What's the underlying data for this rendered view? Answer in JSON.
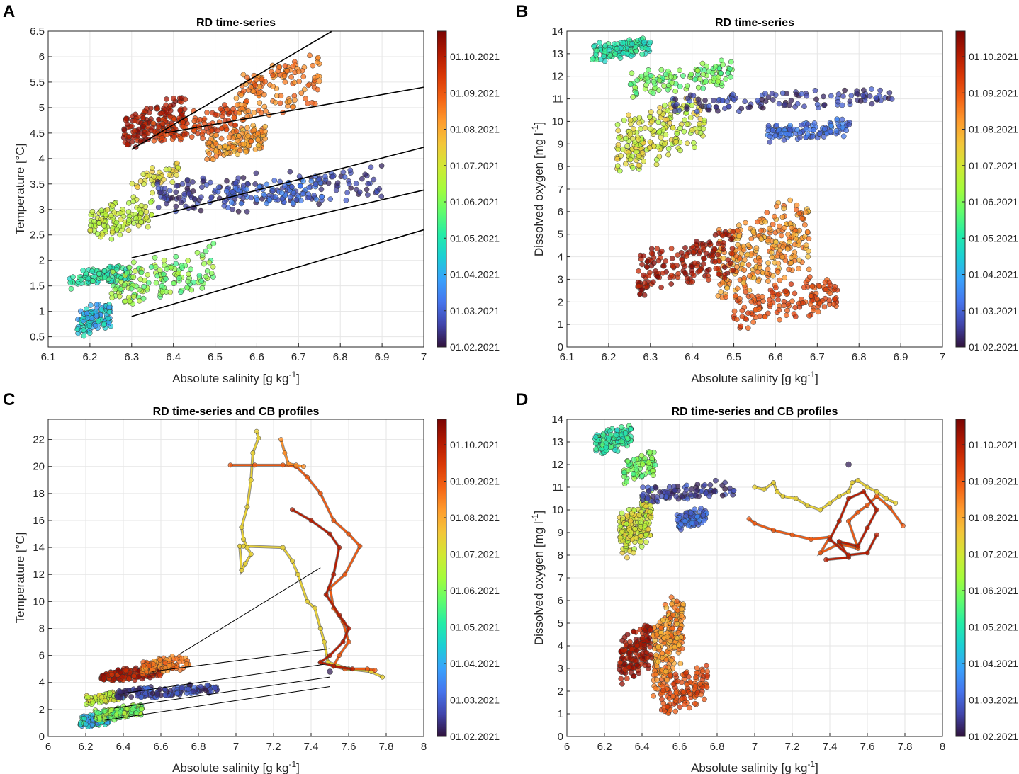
{
  "colormap": [
    "#30123b",
    "#4145ab",
    "#4675ed",
    "#39a2fc",
    "#1bcfd4",
    "#24eca6",
    "#61fc6c",
    "#a4fc3b",
    "#d1e834",
    "#f3c63a",
    "#fe9b2d",
    "#f36315",
    "#d93806",
    "#b11901",
    "#7a0403"
  ],
  "chart_data": [
    {
      "id": "A",
      "letter": "A",
      "type": "scatter",
      "title": "RD time-series",
      "xlabel": "Absolute salinity [g kg",
      "xlabel_sup": "-1",
      "xlabel_end": "]",
      "ylabel": "Temperature [°C]",
      "xlim": [
        6.1,
        7
      ],
      "ylim": [
        0.3,
        6.5
      ],
      "xticks": [
        "6.1",
        "6.2",
        "6.3",
        "6.4",
        "6.5",
        "6.6",
        "6.7",
        "6.8",
        "6.9",
        "7"
      ],
      "xtick_values": [
        6.1,
        6.2,
        6.3,
        6.4,
        6.5,
        6.6,
        6.7,
        6.8,
        6.9,
        7
      ],
      "yticks": [
        "0.5",
        "1",
        "1.5",
        "2",
        "2.5",
        "3",
        "3.5",
        "4",
        "4.5",
        "5",
        "5.5",
        "6",
        "6.5"
      ],
      "ytick_values": [
        0.5,
        1,
        1.5,
        2,
        2.5,
        3,
        3.5,
        4,
        4.5,
        5,
        5.5,
        6,
        6.5
      ],
      "colorbar_labels": [
        "01.10.2021",
        "01.09.2021",
        "01.08.2021",
        "01.07.2021",
        "01.06.2021",
        "01.05.2021",
        "01.04.2021",
        "01.03.2021",
        "01.02.2021"
      ],
      "clusters": [
        {
          "x": [
            6.17,
            6.25
          ],
          "y": [
            0.45,
            1.3
          ],
          "t": [
            0.15,
            0.35
          ],
          "n": 110
        },
        {
          "x": [
            6.15,
            6.3
          ],
          "y": [
            1.4,
            1.95
          ],
          "t": [
            0.3,
            0.4
          ],
          "n": 90
        },
        {
          "x": [
            6.25,
            6.5
          ],
          "y": [
            1.0,
            2.4
          ],
          "t": [
            0.38,
            0.55
          ],
          "n": 140
        },
        {
          "x": [
            6.2,
            6.35
          ],
          "y": [
            2.3,
            3.35
          ],
          "t": [
            0.5,
            0.6
          ],
          "n": 120
        },
        {
          "x": [
            6.3,
            6.42
          ],
          "y": [
            3.3,
            4.0
          ],
          "t": [
            0.55,
            0.65
          ],
          "n": 40
        },
        {
          "x": [
            6.36,
            6.9
          ],
          "y": [
            2.8,
            3.95
          ],
          "t": [
            0.0,
            0.12
          ],
          "n": 170
        },
        {
          "x": [
            6.52,
            6.77
          ],
          "y": [
            2.95,
            3.75
          ],
          "t": [
            0.08,
            0.18
          ],
          "n": 90
        },
        {
          "x": [
            6.48,
            6.62
          ],
          "y": [
            3.9,
            4.75
          ],
          "t": [
            0.65,
            0.78
          ],
          "n": 130
        },
        {
          "x": [
            6.28,
            6.43
          ],
          "y": [
            4.05,
            5.3
          ],
          "t": [
            0.88,
            1.0
          ],
          "n": 140
        },
        {
          "x": [
            6.35,
            6.55
          ],
          "y": [
            4.2,
            5.1
          ],
          "t": [
            0.8,
            0.9
          ],
          "n": 110
        },
        {
          "x": [
            6.55,
            6.75
          ],
          "y": [
            4.5,
            6.25
          ],
          "t": [
            0.7,
            0.82
          ],
          "n": 140
        }
      ],
      "fit_lines": [
        {
          "x": [
            6.3,
            6.78
          ],
          "y": [
            4.18,
            6.5
          ]
        },
        {
          "x": [
            6.38,
            7.0
          ],
          "y": [
            4.5,
            5.4
          ]
        },
        {
          "x": [
            6.35,
            7.0
          ],
          "y": [
            2.85,
            4.22
          ]
        },
        {
          "x": [
            6.3,
            7.0
          ],
          "y": [
            2.05,
            3.38
          ]
        },
        {
          "x": [
            6.3,
            7.0
          ],
          "y": [
            0.9,
            2.6
          ]
        }
      ],
      "profiles": []
    },
    {
      "id": "B",
      "letter": "B",
      "type": "scatter",
      "title": "RD time-series",
      "xlabel": "Absolute salinity [g kg",
      "xlabel_sup": "-1",
      "xlabel_end": "]",
      "ylabel": "Dissolved oxygen [mg l",
      "ylabel_sup": "-1",
      "ylabel_end": "]",
      "xlim": [
        6.1,
        7
      ],
      "ylim": [
        0,
        14
      ],
      "xticks": [
        "6.1",
        "6.2",
        "6.3",
        "6.4",
        "6.5",
        "6.6",
        "6.7",
        "6.8",
        "6.9",
        "7"
      ],
      "xtick_values": [
        6.1,
        6.2,
        6.3,
        6.4,
        6.5,
        6.6,
        6.7,
        6.8,
        6.9,
        7
      ],
      "yticks": [
        "0",
        "1",
        "2",
        "3",
        "4",
        "5",
        "6",
        "7",
        "8",
        "9",
        "10",
        "11",
        "12",
        "13",
        "14"
      ],
      "ytick_values": [
        0,
        1,
        2,
        3,
        4,
        5,
        6,
        7,
        8,
        9,
        10,
        11,
        12,
        13,
        14
      ],
      "colorbar_labels": [
        "01.10.2021",
        "01.09.2021",
        "01.08.2021",
        "01.07.2021",
        "01.06.2021",
        "01.05.2021",
        "01.04.2021",
        "01.03.2021",
        "01.02.2021"
      ],
      "clusters": [
        {
          "x": [
            6.16,
            6.3
          ],
          "y": [
            12.5,
            13.9
          ],
          "t": [
            0.3,
            0.4
          ],
          "n": 120
        },
        {
          "x": [
            6.25,
            6.5
          ],
          "y": [
            11.0,
            12.8
          ],
          "t": [
            0.38,
            0.5
          ],
          "n": 110
        },
        {
          "x": [
            6.22,
            6.43
          ],
          "y": [
            7.5,
            11.5
          ],
          "t": [
            0.5,
            0.65
          ],
          "n": 200
        },
        {
          "x": [
            6.35,
            6.88
          ],
          "y": [
            10.3,
            11.6
          ],
          "t": [
            0.0,
            0.12
          ],
          "n": 120
        },
        {
          "x": [
            6.58,
            6.78
          ],
          "y": [
            9.0,
            10.2
          ],
          "t": [
            0.08,
            0.18
          ],
          "n": 110
        },
        {
          "x": [
            6.46,
            6.68
          ],
          "y": [
            1.5,
            7.0
          ],
          "t": [
            0.65,
            0.8
          ],
          "n": 260
        },
        {
          "x": [
            6.27,
            6.5
          ],
          "y": [
            2.0,
            5.4
          ],
          "t": [
            0.88,
            1.0
          ],
          "n": 170
        },
        {
          "x": [
            6.5,
            6.75
          ],
          "y": [
            0.7,
            3.4
          ],
          "t": [
            0.78,
            0.88
          ],
          "n": 140
        }
      ],
      "fit_lines": [],
      "profiles": []
    },
    {
      "id": "C",
      "letter": "C",
      "type": "scatter",
      "title": "RD time-series and CB profiles",
      "xlabel": "Absolute salinity [g kg",
      "xlabel_sup": "-1",
      "xlabel_end": "]",
      "ylabel": "Temperature [°C]",
      "xlim": [
        6,
        8
      ],
      "ylim": [
        0,
        23.5
      ],
      "xticks": [
        "6",
        "6.2",
        "6.4",
        "6.6",
        "6.8",
        "7",
        "7.2",
        "7.4",
        "7.6",
        "7.8",
        "8"
      ],
      "xtick_values": [
        6,
        6.2,
        6.4,
        6.6,
        6.8,
        7,
        7.2,
        7.4,
        7.6,
        7.8,
        8
      ],
      "yticks": [
        "0",
        "2",
        "4",
        "6",
        "8",
        "10",
        "12",
        "14",
        "16",
        "18",
        "20",
        "22"
      ],
      "ytick_values": [
        0,
        2,
        4,
        6,
        8,
        10,
        12,
        14,
        16,
        18,
        20,
        22
      ],
      "colorbar_labels": [
        "01.10.2021",
        "01.09.2021",
        "01.08.2021",
        "01.07.2021",
        "01.06.2021",
        "01.05.2021",
        "01.04.2021",
        "01.03.2021",
        "01.02.2021"
      ],
      "clusters": [
        {
          "x": [
            6.17,
            6.32
          ],
          "y": [
            0.5,
            1.9
          ],
          "t": [
            0.15,
            0.4
          ],
          "n": 140
        },
        {
          "x": [
            6.25,
            6.5
          ],
          "y": [
            1.0,
            2.5
          ],
          "t": [
            0.38,
            0.55
          ],
          "n": 120
        },
        {
          "x": [
            6.2,
            6.4
          ],
          "y": [
            2.3,
            3.4
          ],
          "t": [
            0.5,
            0.62
          ],
          "n": 90
        },
        {
          "x": [
            6.36,
            6.9
          ],
          "y": [
            2.7,
            4.0
          ],
          "t": [
            0.0,
            0.15
          ],
          "n": 140
        },
        {
          "x": [
            6.28,
            6.6
          ],
          "y": [
            3.9,
            5.3
          ],
          "t": [
            0.85,
            1.0
          ],
          "n": 150
        },
        {
          "x": [
            6.5,
            6.75
          ],
          "y": [
            4.5,
            6.2
          ],
          "t": [
            0.7,
            0.82
          ],
          "n": 90
        }
      ],
      "fit_lines": [
        {
          "x": [
            6.7,
            7.45
          ],
          "y": [
            6.1,
            12.5
          ]
        },
        {
          "x": [
            6.55,
            7.5
          ],
          "y": [
            4.8,
            6.5
          ]
        },
        {
          "x": [
            6.4,
            7.5
          ],
          "y": [
            3.2,
            5.4
          ]
        },
        {
          "x": [
            6.35,
            7.5
          ],
          "y": [
            2.1,
            4.4
          ]
        },
        {
          "x": [
            6.3,
            7.5
          ],
          "y": [
            1.2,
            3.7
          ]
        }
      ],
      "profiles": [
        {
          "t": 0.62,
          "x": [
            7.11,
            7.12,
            7.09,
            7.08,
            7.06,
            7.03,
            7.04,
            7.06,
            7.08,
            7.05,
            7.03,
            7.02,
            7.04,
            7.25,
            7.3,
            7.33,
            7.38,
            7.42,
            7.45,
            7.47,
            7.49,
            7.6,
            7.72,
            7.78
          ],
          "y": [
            22.6,
            22.1,
            21.0,
            19.0,
            17.0,
            15.5,
            14.6,
            14.0,
            13.5,
            12.8,
            12.3,
            14.1,
            14.1,
            14.0,
            13.0,
            12.0,
            10.0,
            9.5,
            8.0,
            7.0,
            5.5,
            5.0,
            4.8,
            4.4
          ]
        },
        {
          "t": 0.8,
          "x": [
            6.97,
            7.1,
            7.25,
            7.32,
            7.38,
            7.45,
            7.52,
            7.6,
            7.66,
            7.58,
            7.5,
            7.52,
            7.57,
            7.6,
            7.55,
            7.52,
            7.58,
            7.7,
            7.74
          ],
          "y": [
            20.1,
            20.1,
            20.1,
            20.0,
            19.2,
            18.0,
            16.0,
            15.0,
            14.1,
            12.0,
            11.0,
            9.5,
            8.5,
            7.0,
            6.0,
            5.2,
            5.0,
            5.0,
            4.9
          ]
        },
        {
          "t": 0.73,
          "x": [
            7.24,
            7.26,
            7.28,
            7.32,
            7.36
          ],
          "y": [
            22.0,
            21.0,
            20.2,
            20.1,
            20.0
          ]
        },
        {
          "t": 0.92,
          "x": [
            7.3,
            7.4,
            7.5,
            7.55,
            7.52,
            7.48,
            7.55,
            7.6,
            7.57,
            7.5,
            7.45,
            7.52,
            7.62
          ],
          "y": [
            16.8,
            16.0,
            15.0,
            14.0,
            12.0,
            10.5,
            9.0,
            8.0,
            7.0,
            6.0,
            5.5,
            5.2,
            5.0
          ]
        }
      ],
      "extra_points": [
        {
          "t": 0.02,
          "x": 7.5,
          "y": 4.8
        }
      ]
    },
    {
      "id": "D",
      "letter": "D",
      "type": "scatter",
      "title": "RD time-series and CB profiles",
      "xlabel": "Absolute salinity [g kg",
      "xlabel_sup": "-1",
      "xlabel_end": "]",
      "ylabel": "Dissolved oxygen [mg l",
      "ylabel_sup": "-1",
      "ylabel_end": "]",
      "xlim": [
        6,
        8
      ],
      "ylim": [
        0,
        14
      ],
      "xticks": [
        "6",
        "6.2",
        "6.4",
        "6.6",
        "6.8",
        "7",
        "7.2",
        "7.4",
        "7.6",
        "7.8",
        "8"
      ],
      "xtick_values": [
        6,
        6.2,
        6.4,
        6.6,
        6.8,
        7,
        7.2,
        7.4,
        7.6,
        7.8,
        8
      ],
      "yticks": [
        "0",
        "1",
        "2",
        "3",
        "4",
        "5",
        "6",
        "7",
        "8",
        "9",
        "10",
        "11",
        "12",
        "13",
        "14"
      ],
      "ytick_values": [
        0,
        1,
        2,
        3,
        4,
        5,
        6,
        7,
        8,
        9,
        10,
        11,
        12,
        13,
        14
      ],
      "colorbar_labels": [
        "01.10.2021",
        "01.09.2021",
        "01.08.2021",
        "01.07.2021",
        "01.06.2021",
        "01.05.2021",
        "01.04.2021",
        "01.03.2021",
        "01.02.2021"
      ],
      "clusters": [
        {
          "x": [
            6.15,
            6.35
          ],
          "y": [
            12.3,
            13.9
          ],
          "t": [
            0.3,
            0.42
          ],
          "n": 120
        },
        {
          "x": [
            6.3,
            6.47
          ],
          "y": [
            11.0,
            12.7
          ],
          "t": [
            0.38,
            0.5
          ],
          "n": 80
        },
        {
          "x": [
            6.28,
            6.45
          ],
          "y": [
            7.5,
            11.0
          ],
          "t": [
            0.5,
            0.65
          ],
          "n": 180
        },
        {
          "x": [
            6.4,
            6.9
          ],
          "y": [
            10.2,
            11.4
          ],
          "t": [
            0.0,
            0.12
          ],
          "n": 90
        },
        {
          "x": [
            6.58,
            6.75
          ],
          "y": [
            9.0,
            10.3
          ],
          "t": [
            0.08,
            0.18
          ],
          "n": 80
        },
        {
          "x": [
            6.46,
            6.62
          ],
          "y": [
            1.5,
            7.0
          ],
          "t": [
            0.65,
            0.8
          ],
          "n": 220
        },
        {
          "x": [
            6.28,
            6.45
          ],
          "y": [
            2.0,
            5.4
          ],
          "t": [
            0.88,
            1.0
          ],
          "n": 150
        },
        {
          "x": [
            6.5,
            6.75
          ],
          "y": [
            0.7,
            3.4
          ],
          "t": [
            0.78,
            0.88
          ],
          "n": 120
        }
      ],
      "fit_lines": [],
      "profiles": [
        {
          "t": 0.62,
          "x": [
            7.0,
            7.05,
            7.1,
            7.12,
            7.15,
            7.22,
            7.28,
            7.35,
            7.4,
            7.45,
            7.5,
            7.52,
            7.55,
            7.6,
            7.65,
            7.7,
            7.75
          ],
          "y": [
            11.0,
            10.9,
            11.2,
            10.8,
            10.6,
            10.5,
            10.2,
            10.0,
            10.3,
            10.6,
            10.8,
            11.2,
            11.3,
            11.0,
            10.8,
            10.5,
            10.3
          ]
        },
        {
          "t": 0.8,
          "x": [
            6.97,
            7.0,
            7.1,
            7.2,
            7.3,
            7.4,
            7.35,
            7.45,
            7.55,
            7.5,
            7.55,
            7.6,
            7.65,
            7.72,
            7.79
          ],
          "y": [
            9.6,
            9.4,
            9.1,
            8.9,
            8.7,
            8.8,
            8.1,
            8.5,
            8.3,
            9.5,
            9.9,
            10.2,
            10.6,
            10.1,
            9.3
          ]
        },
        {
          "t": 0.92,
          "x": [
            7.38,
            7.5,
            7.45,
            7.55,
            7.6,
            7.65,
            7.58,
            7.5,
            7.45,
            7.4,
            7.5,
            7.6,
            7.65
          ],
          "y": [
            7.8,
            7.9,
            8.6,
            8.4,
            9.2,
            10.0,
            10.8,
            10.5,
            9.5,
            8.7,
            8.0,
            8.1,
            8.9
          ]
        }
      ],
      "extra_points": [
        {
          "t": 0.02,
          "x": 7.5,
          "y": 12.0
        }
      ]
    }
  ]
}
